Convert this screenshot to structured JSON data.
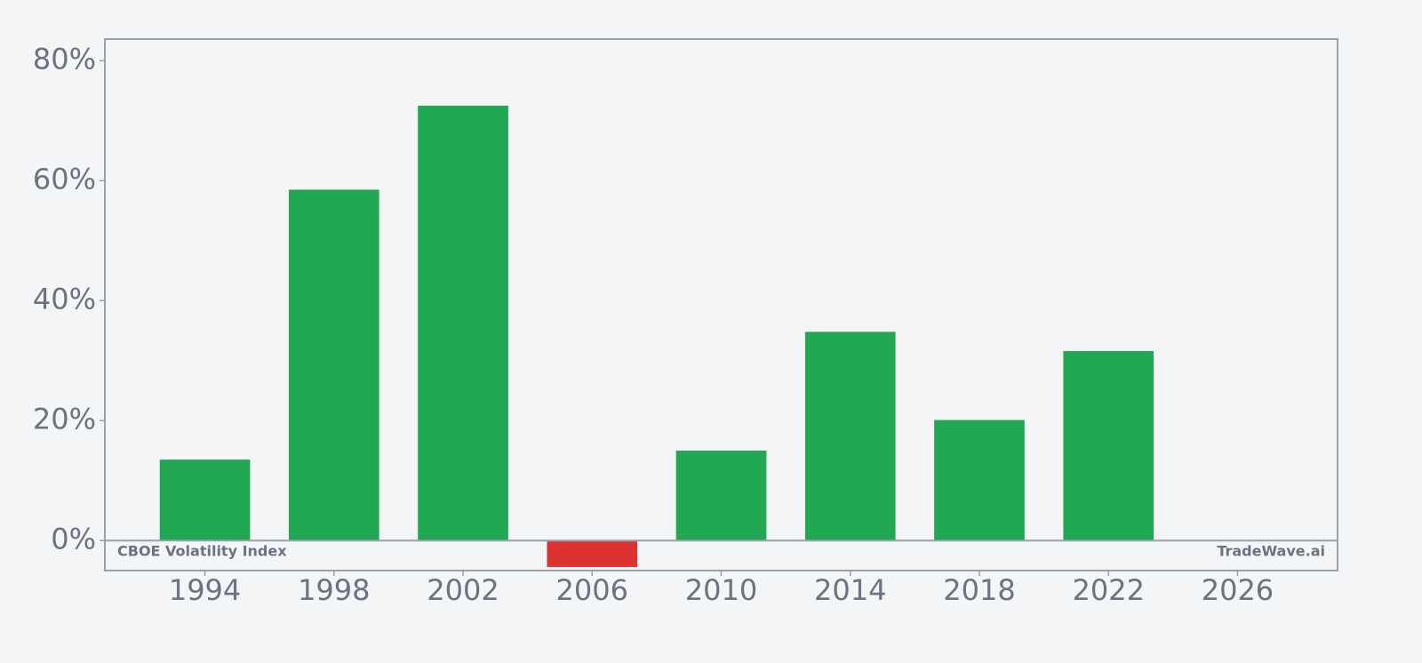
{
  "chart_data": {
    "type": "bar",
    "x": [
      1994,
      1998,
      2002,
      2006,
      2010,
      2014,
      2018,
      2022
    ],
    "values": [
      13.5,
      58.5,
      72.5,
      -4.4,
      15.0,
      34.8,
      20.1,
      31.6
    ],
    "positive_color": "#22a853",
    "negative_color": "#dc3232",
    "bar_width": 2.8,
    "xlim": [
      1990.9,
      2029.1
    ],
    "xticks": [
      1994,
      1998,
      2002,
      2006,
      2010,
      2014,
      2018,
      2022,
      2026
    ],
    "ylim": [
      -5,
      83.6
    ],
    "yticks": [
      {
        "value": 0,
        "label": "0%"
      },
      {
        "value": 20,
        "label": "20%"
      },
      {
        "value": 40,
        "label": "40%"
      },
      {
        "value": 60,
        "label": "60%"
      },
      {
        "value": 80,
        "label": "80%"
      }
    ],
    "annotations": [
      "CBOE Volatility Index",
      "TradeWave.ai"
    ]
  }
}
